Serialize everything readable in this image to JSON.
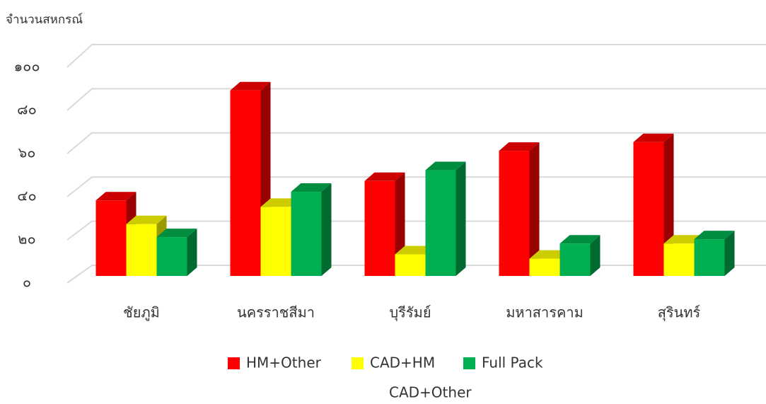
{
  "chart_data": {
    "type": "bar3d",
    "y_label": "จำนวนสหกรณ์",
    "categories": [
      "ชัยภูมิ",
      "นครราชสีมา",
      "บุรีรัมย์",
      "มหาสารคาม",
      "สุรินทร์"
    ],
    "series": [
      {
        "name": "HM+Other",
        "color": "#ff0000",
        "values": [
          35,
          86,
          44,
          58,
          62
        ]
      },
      {
        "name": "CAD+HM",
        "color": "#ffff00",
        "values": [
          24,
          32,
          10,
          8,
          15
        ]
      },
      {
        "name": "Full Pack",
        "color": "#00b050",
        "values": [
          18,
          39,
          49,
          15,
          17
        ]
      },
      {
        "name": "CAD+Other",
        "values": [
          null,
          null,
          null,
          null,
          null
        ]
      }
    ],
    "ylim": [
      0,
      100
    ],
    "yticks": [
      {
        "value": 0,
        "label": "๐"
      },
      {
        "value": 20,
        "label": "๒๐"
      },
      {
        "value": 40,
        "label": "๔๐"
      },
      {
        "value": 60,
        "label": "๖๐"
      },
      {
        "value": 80,
        "label": "๘๐"
      },
      {
        "value": 100,
        "label": "๑๐๐"
      }
    ],
    "grid": true
  }
}
